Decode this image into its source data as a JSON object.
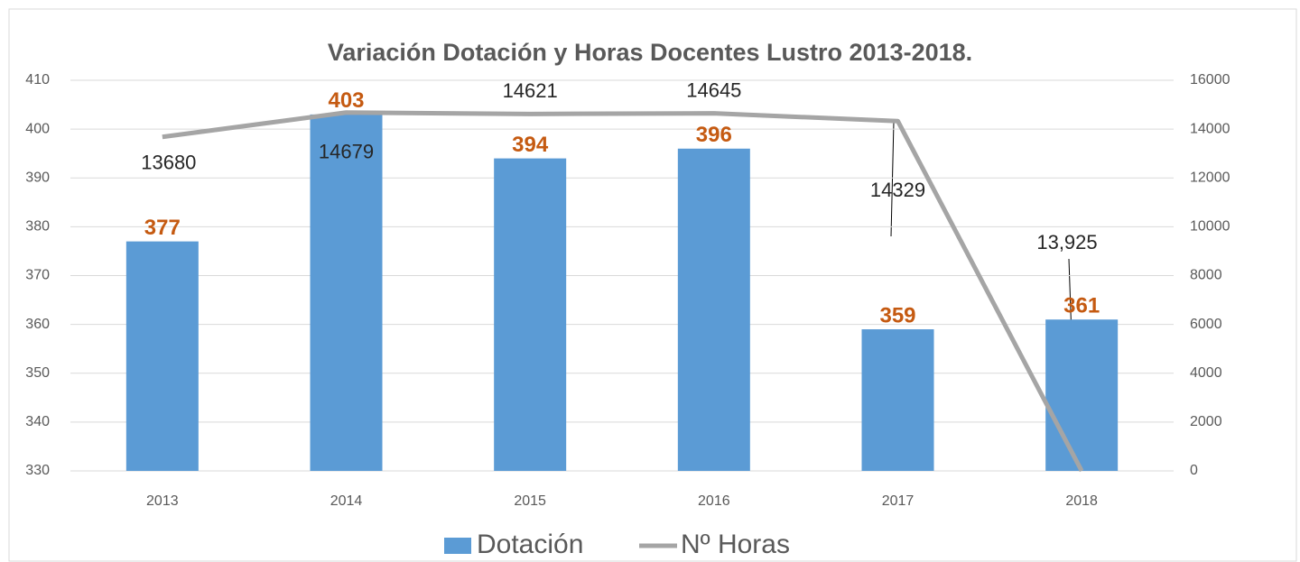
{
  "chart_data": {
    "type": "bar+line",
    "title": "Variación Dotación y Horas Docentes Lustro 2013-2018.",
    "categories": [
      "2013",
      "2014",
      "2015",
      "2016",
      "2017",
      "2018"
    ],
    "series": [
      {
        "name": "Dotación",
        "color": "#5b9bd5",
        "type": "bar",
        "values": [
          377,
          403,
          394,
          396,
          359,
          361
        ]
      },
      {
        "name": "Nº Horas",
        "color": "#a5a5a5",
        "type": "line",
        "axis": "y2",
        "values": [
          13680,
          14679,
          14621,
          14645,
          14329,
          0
        ]
      }
    ],
    "annotations": [
      "13,925"
    ],
    "ylim": [
      330,
      410
    ],
    "yticks": [
      330,
      340,
      350,
      360,
      370,
      380,
      390,
      400,
      410
    ],
    "y2lim": [
      0,
      16000
    ],
    "y2ticks": [
      0,
      2000,
      4000,
      6000,
      8000,
      10000,
      12000,
      14000,
      16000
    ],
    "grid": true,
    "legend": "bottom"
  }
}
